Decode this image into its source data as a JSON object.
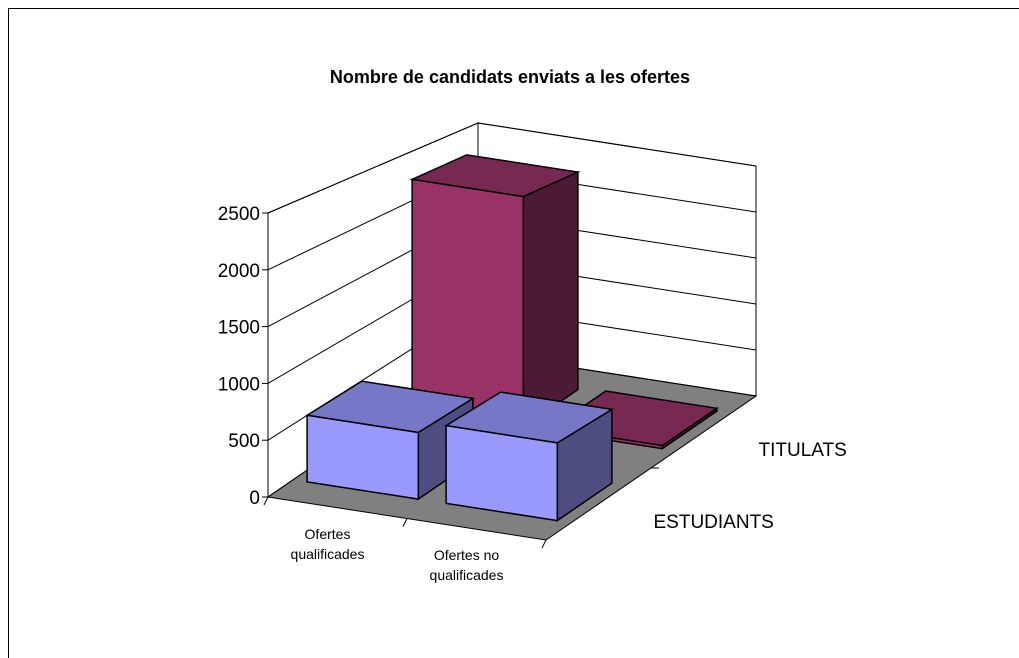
{
  "chart_data": {
    "type": "bar3d",
    "title": "Nombre de candidats enviats a les ofertes",
    "categories": [
      "Ofertes qualificades",
      "Ofertes no qualificades"
    ],
    "series": [
      {
        "name": "ESTUDIANTS",
        "color": "#9999ff",
        "values": [
          600,
          700
        ]
      },
      {
        "name": "TITULATS",
        "color": "#993366",
        "values": [
          2300,
          30
        ]
      }
    ],
    "ylim": [
      0,
      2500
    ],
    "yticks": [
      0,
      500,
      1000,
      1500,
      2000,
      2500
    ],
    "grid": true
  }
}
